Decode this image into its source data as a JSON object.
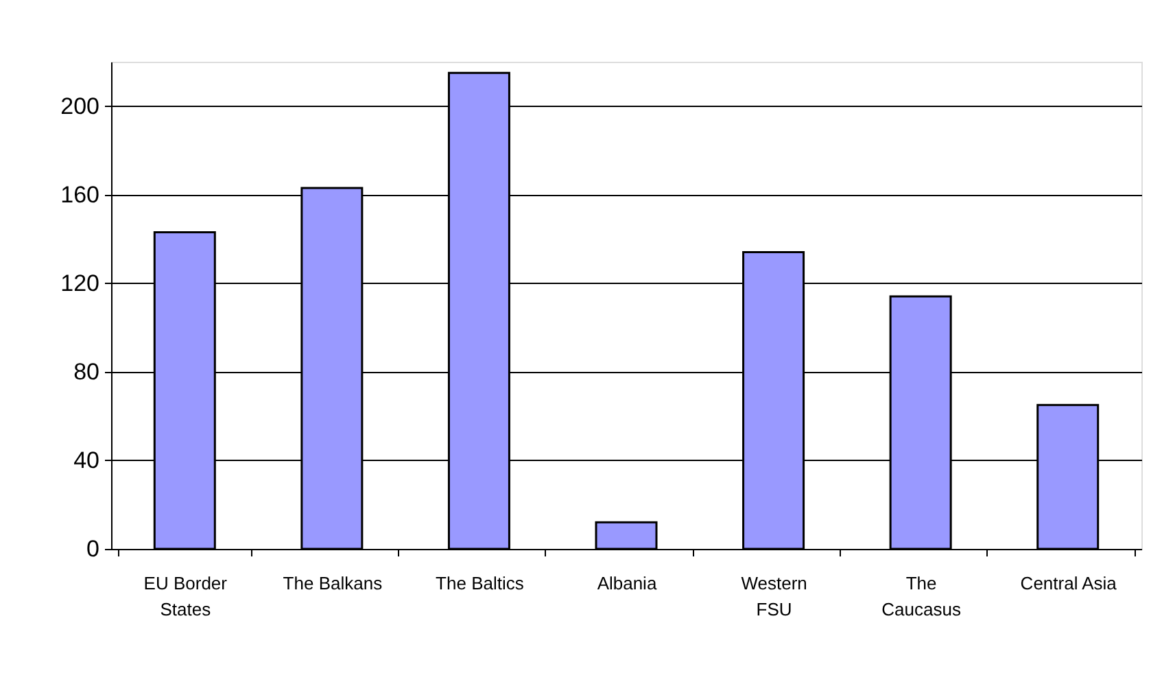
{
  "chart_data": {
    "type": "bar",
    "categories": [
      "EU Border\nStates",
      "The Balkans",
      "The Baltics",
      "Albania",
      "Western\nFSU",
      "The\nCaucasus",
      "Central Asia"
    ],
    "values": [
      143,
      163,
      215,
      12,
      134,
      114,
      65
    ],
    "color": "#9999ff",
    "ylim": [
      0,
      220
    ],
    "yticks": [
      0,
      40,
      80,
      120,
      160,
      200
    ],
    "grid": "y"
  }
}
